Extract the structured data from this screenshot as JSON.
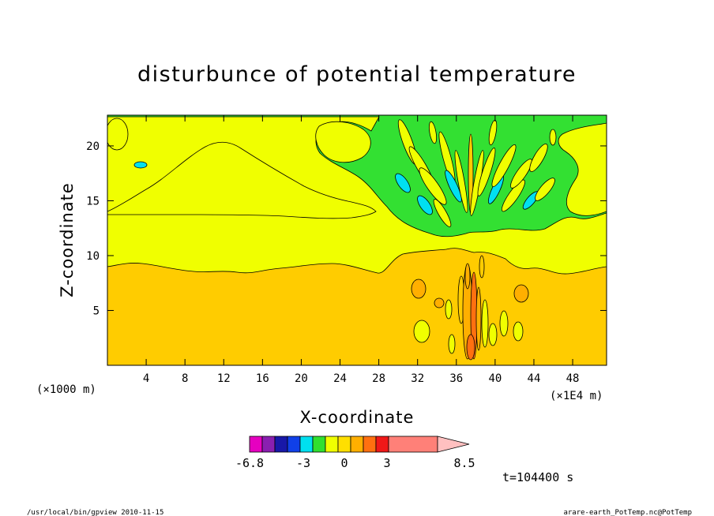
{
  "chart_data": {
    "type": "heatmap",
    "title": "disturbunce of potential temperature",
    "xlabel": "X-coordinate",
    "ylabel": "Z-coordinate",
    "x_unit_label": "(×1E4 m)",
    "y_unit_label": "(×1000 m)",
    "xlim": [
      0,
      51.5
    ],
    "ylim": [
      0,
      22.8
    ],
    "x_ticks": [
      4,
      8,
      12,
      16,
      20,
      24,
      28,
      32,
      36,
      40,
      44,
      48
    ],
    "y_ticks": [
      5,
      10,
      15,
      20
    ],
    "colorbar": {
      "tick_labels": [
        "-6.8",
        "-3",
        "0",
        "3",
        "8.5"
      ],
      "tick_values": [
        -6.8,
        -3,
        0,
        3,
        8.5
      ],
      "colors": [
        "#e600c0",
        "#8a1fb0",
        "#1818a8",
        "#1040e8",
        "#00e0f0",
        "#30e030",
        "#f0ff00",
        "#ffdf00",
        "#ffaf00",
        "#ff7010",
        "#f01818",
        "#ff8078",
        "#ffc0c0"
      ],
      "extend": "max"
    },
    "time_label": "t=104400 s"
  },
  "footer": {
    "left": "/usr/local/bin/gpview   2010-11-15",
    "right": "arare-earth_PotTemp.nc@PotTemp"
  }
}
